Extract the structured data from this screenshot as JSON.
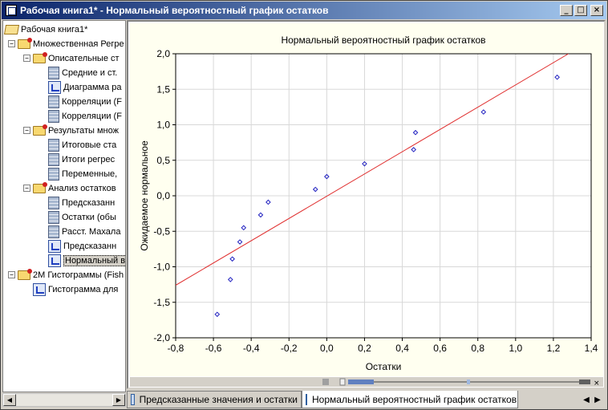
{
  "window": {
    "title": "Рабочая книга1* - Нормальный вероятностный график остатков"
  },
  "tree": {
    "items": [
      {
        "label": "Рабочая книга1*",
        "level": 0,
        "icon": "folder-open-icon",
        "expander": ""
      },
      {
        "label": "Множественная Регре",
        "level": 1,
        "icon": "folder-icon",
        "expander": "−"
      },
      {
        "label": "Описательные ст",
        "level": 2,
        "icon": "folder-icon",
        "expander": "−"
      },
      {
        "label": "Средние и ст.",
        "level": 3,
        "icon": "table-icon",
        "expander": ""
      },
      {
        "label": "Диаграмма ра",
        "level": 3,
        "icon": "chart-icon",
        "expander": ""
      },
      {
        "label": "Корреляции (F",
        "level": 3,
        "icon": "table-icon",
        "expander": ""
      },
      {
        "label": "Корреляции (F",
        "level": 3,
        "icon": "table-icon",
        "expander": ""
      },
      {
        "label": "Результаты множ",
        "level": 2,
        "icon": "folder-icon",
        "expander": "−"
      },
      {
        "label": "Итоговые ста",
        "level": 3,
        "icon": "table-icon",
        "expander": ""
      },
      {
        "label": "Итоги регрес",
        "level": 3,
        "icon": "table-icon",
        "expander": ""
      },
      {
        "label": "Переменные,",
        "level": 3,
        "icon": "table-icon",
        "expander": ""
      },
      {
        "label": "Анализ остатков",
        "level": 2,
        "icon": "folder-icon",
        "expander": "−"
      },
      {
        "label": "Предсказанн",
        "level": 3,
        "icon": "table-icon",
        "expander": ""
      },
      {
        "label": "Остатки (обы",
        "level": 3,
        "icon": "table-icon",
        "expander": ""
      },
      {
        "label": "Расст. Махала",
        "level": 3,
        "icon": "table-icon",
        "expander": ""
      },
      {
        "label": "Предсказанн",
        "level": 3,
        "icon": "chart-icon",
        "expander": ""
      },
      {
        "label": "Нормальный в",
        "level": 3,
        "icon": "chart-icon",
        "expander": "",
        "selected": true
      },
      {
        "label": "2М Гистограммы (Fish",
        "level": 1,
        "icon": "folder-icon",
        "expander": "−"
      },
      {
        "label": "Гистограмма для",
        "level": 2,
        "icon": "chart-icon",
        "expander": ""
      }
    ]
  },
  "tabs": [
    {
      "label": "Предсказанные значения и остатки"
    },
    {
      "label": "Нормальный вероятностный график остатков"
    }
  ],
  "colors": {
    "fit_line": "#e03030",
    "points": "#2020c0",
    "plot_bg": "#ffffff",
    "graph_bg": "#fffff0"
  },
  "chart_data": {
    "type": "scatter",
    "title": "Нормальный вероятностный график остатков",
    "xlabel": "Остатки",
    "ylabel": "Ожидаемое нормальное",
    "xlim": [
      -0.8,
      1.4
    ],
    "ylim": [
      -2.0,
      2.0
    ],
    "xticks": [
      -0.8,
      -0.6,
      -0.4,
      -0.2,
      0.0,
      0.2,
      0.4,
      0.6,
      0.8,
      1.0,
      1.2,
      1.4
    ],
    "yticks": [
      -2.0,
      -1.5,
      -1.0,
      -0.5,
      0.0,
      0.5,
      1.0,
      1.5,
      2.0
    ],
    "xtick_labels": [
      "-0,8",
      "-0,6",
      "-0,4",
      "-0,2",
      "0,0",
      "0,2",
      "0,4",
      "0,6",
      "0,8",
      "1,0",
      "1,2",
      "1,4"
    ],
    "ytick_labels": [
      "-2,0",
      "-1,5",
      "-1,0",
      "-0,5",
      "0,0",
      "0,5",
      "1,0",
      "1,5",
      "2,0"
    ],
    "grid": true,
    "points": [
      {
        "x": -0.58,
        "y": -1.67
      },
      {
        "x": -0.51,
        "y": -1.18
      },
      {
        "x": -0.5,
        "y": -0.89
      },
      {
        "x": -0.46,
        "y": -0.65
      },
      {
        "x": -0.44,
        "y": -0.45
      },
      {
        "x": -0.35,
        "y": -0.27
      },
      {
        "x": -0.31,
        "y": -0.09
      },
      {
        "x": -0.06,
        "y": 0.09
      },
      {
        "x": 0.0,
        "y": 0.27
      },
      {
        "x": 0.2,
        "y": 0.45
      },
      {
        "x": 0.46,
        "y": 0.65
      },
      {
        "x": 0.47,
        "y": 0.89
      },
      {
        "x": 0.83,
        "y": 1.18
      },
      {
        "x": 1.22,
        "y": 1.67
      }
    ],
    "fit_line": {
      "x": [
        -0.8,
        1.28
      ],
      "y": [
        -1.26,
        2.0
      ]
    }
  }
}
